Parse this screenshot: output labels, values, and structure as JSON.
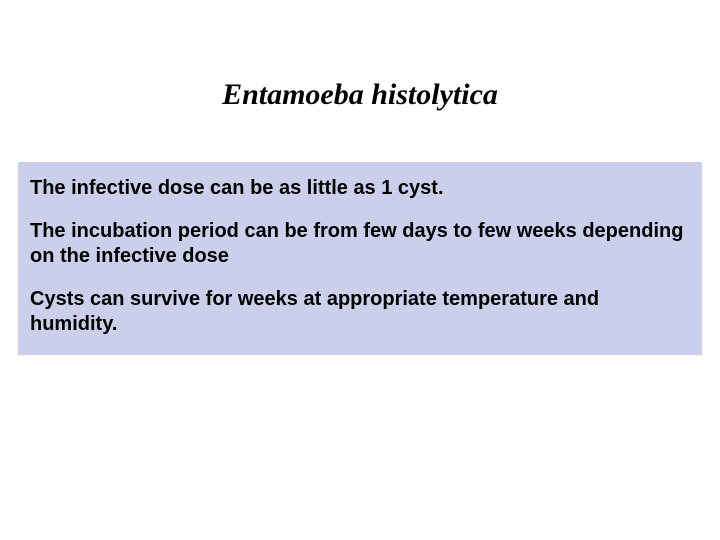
{
  "slide": {
    "title": "Entamoeba histolytica",
    "title_fontsize": 30,
    "title_color": "#000000",
    "background_color": "#ffffff",
    "content_box": {
      "background_color": "#cccfeb",
      "text_color": "#000000",
      "body_fontsize": 20,
      "paragraphs": [
        "The infective dose can be as little as 1 cyst.",
        "The incubation period can be from few days to few weeks depending on the infective dose",
        "Cysts can survive for weeks at appropriate temperature and humidity."
      ]
    }
  }
}
